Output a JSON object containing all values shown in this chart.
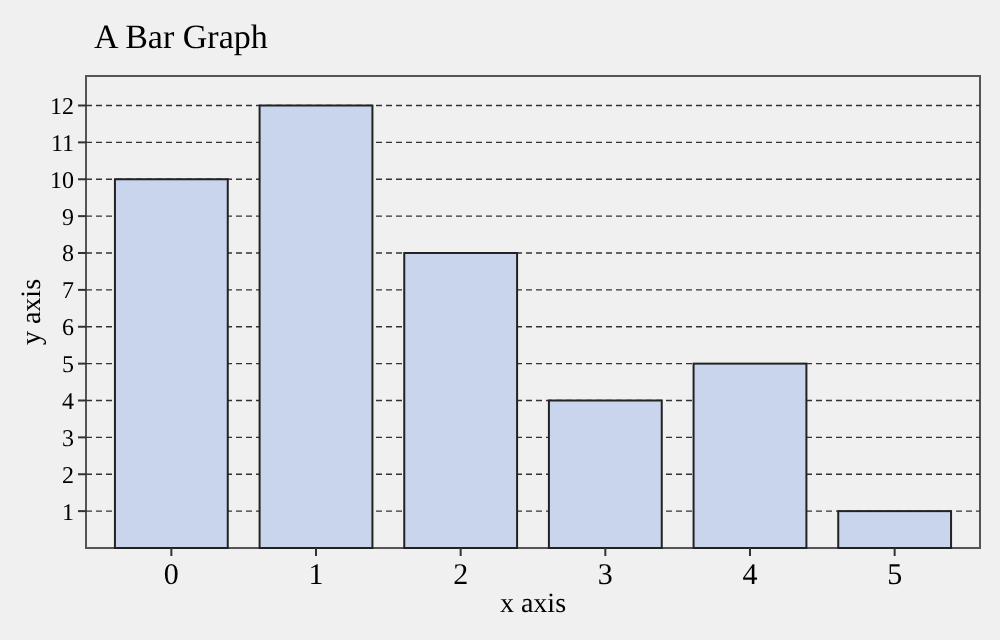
{
  "chart_data": {
    "type": "bar",
    "title": "A Bar Graph",
    "xlabel": "x axis",
    "ylabel": "y axis",
    "categories": [
      "0",
      "1",
      "2",
      "3",
      "4",
      "5"
    ],
    "values": [
      10,
      12,
      8,
      4,
      5,
      1
    ],
    "color": "#c9d5ec",
    "ylim": [
      0,
      12.8
    ],
    "yticks": [
      1,
      2,
      3,
      4,
      5,
      6,
      7,
      8,
      9,
      10,
      11,
      12
    ],
    "grid": "y"
  }
}
